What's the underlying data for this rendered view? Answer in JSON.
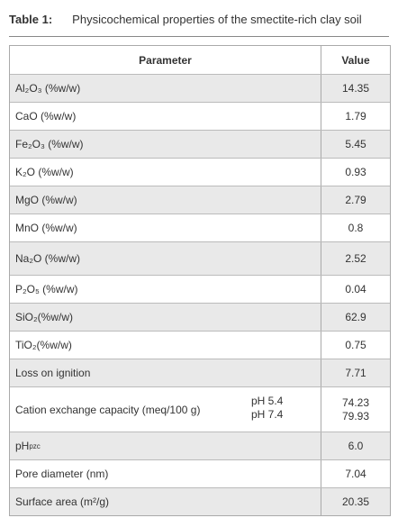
{
  "caption": {
    "label": "Table 1:",
    "title": "Physicochemical properties of the smectite-rich clay soil"
  },
  "table": {
    "headers": [
      "Parameter",
      "Value"
    ],
    "rows": [
      {
        "parameter": "Al₂O₃ (%w/w)",
        "value": "14.35"
      },
      {
        "parameter": "CaO (%w/w)",
        "value": "1.79"
      },
      {
        "parameter": "Fe₂O₃ (%w/w)",
        "value": "5.45"
      },
      {
        "parameter": "K₂O (%w/w)",
        "value": "0.93"
      },
      {
        "parameter": "MgO (%w/w)",
        "value": "2.79"
      },
      {
        "parameter": "MnO (%w/w)",
        "value": "0.8"
      },
      {
        "parameter": "Na₂O (%w/w)",
        "value": "2.52"
      },
      {
        "parameter": "P₂O₅ (%w/w)",
        "value": "0.04"
      },
      {
        "parameter": "SiO₂(%w/w)",
        "value": "62.9"
      },
      {
        "parameter": "TiO₂(%w/w)",
        "value": "0.75"
      },
      {
        "parameter": "Loss on ignition",
        "value": "7.71"
      },
      {
        "parameter": "Cation exchange capacity (meq/100 g)",
        "conditions": [
          "pH 5.4",
          "pH 7.4"
        ],
        "values": [
          "74.23",
          "79.93"
        ]
      },
      {
        "parameter": "pH",
        "parameter_sub": "pzc",
        "value": "6.0"
      },
      {
        "parameter": "Pore diameter (nm)",
        "value": "7.04"
      },
      {
        "parameter": "Surface area (m²/g)",
        "value": "20.35"
      }
    ]
  }
}
